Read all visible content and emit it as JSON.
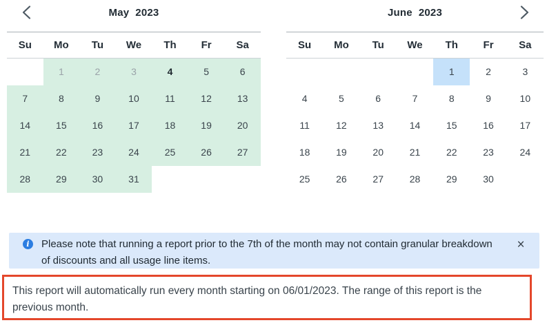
{
  "colors": {
    "selected_range_green": "#d7efe2",
    "selected_day_blue": "#c5e1fa",
    "banner_background": "#dbe9fb",
    "info_icon_blue": "#2b7de1",
    "alert_border_red": "#e4472b"
  },
  "calendars": [
    {
      "month": "May",
      "year": "2023",
      "day_names": [
        "Su",
        "Mo",
        "Tu",
        "We",
        "Th",
        "Fr",
        "Sa"
      ],
      "weeks": [
        [
          {
            "d": ""
          },
          {
            "d": "1",
            "hl": "green",
            "muted": true
          },
          {
            "d": "2",
            "hl": "green",
            "muted": true
          },
          {
            "d": "3",
            "hl": "green",
            "muted": true
          },
          {
            "d": "4",
            "hl": "green",
            "bold": true
          },
          {
            "d": "5",
            "hl": "green"
          },
          {
            "d": "6",
            "hl": "green"
          }
        ],
        [
          {
            "d": "7",
            "hl": "green"
          },
          {
            "d": "8",
            "hl": "green"
          },
          {
            "d": "9",
            "hl": "green"
          },
          {
            "d": "10",
            "hl": "green"
          },
          {
            "d": "11",
            "hl": "green"
          },
          {
            "d": "12",
            "hl": "green"
          },
          {
            "d": "13",
            "hl": "green"
          }
        ],
        [
          {
            "d": "14",
            "hl": "green"
          },
          {
            "d": "15",
            "hl": "green"
          },
          {
            "d": "16",
            "hl": "green"
          },
          {
            "d": "17",
            "hl": "green"
          },
          {
            "d": "18",
            "hl": "green"
          },
          {
            "d": "19",
            "hl": "green"
          },
          {
            "d": "20",
            "hl": "green"
          }
        ],
        [
          {
            "d": "21",
            "hl": "green"
          },
          {
            "d": "22",
            "hl": "green"
          },
          {
            "d": "23",
            "hl": "green"
          },
          {
            "d": "24",
            "hl": "green"
          },
          {
            "d": "25",
            "hl": "green"
          },
          {
            "d": "26",
            "hl": "green"
          },
          {
            "d": "27",
            "hl": "green"
          }
        ],
        [
          {
            "d": "28",
            "hl": "green"
          },
          {
            "d": "29",
            "hl": "green"
          },
          {
            "d": "30",
            "hl": "green"
          },
          {
            "d": "31",
            "hl": "green"
          },
          {
            "d": ""
          },
          {
            "d": ""
          },
          {
            "d": ""
          }
        ]
      ]
    },
    {
      "month": "June",
      "year": "2023",
      "day_names": [
        "Su",
        "Mo",
        "Tu",
        "We",
        "Th",
        "Fr",
        "Sa"
      ],
      "weeks": [
        [
          {
            "d": ""
          },
          {
            "d": ""
          },
          {
            "d": ""
          },
          {
            "d": ""
          },
          {
            "d": "1",
            "hl": "blue"
          },
          {
            "d": "2"
          },
          {
            "d": "3"
          }
        ],
        [
          {
            "d": "4"
          },
          {
            "d": "5"
          },
          {
            "d": "6"
          },
          {
            "d": "7"
          },
          {
            "d": "8"
          },
          {
            "d": "9"
          },
          {
            "d": "10"
          }
        ],
        [
          {
            "d": "11"
          },
          {
            "d": "12"
          },
          {
            "d": "13"
          },
          {
            "d": "14"
          },
          {
            "d": "15"
          },
          {
            "d": "16"
          },
          {
            "d": "17"
          }
        ],
        [
          {
            "d": "18"
          },
          {
            "d": "19"
          },
          {
            "d": "20"
          },
          {
            "d": "21"
          },
          {
            "d": "22"
          },
          {
            "d": "23"
          },
          {
            "d": "24"
          }
        ],
        [
          {
            "d": "25"
          },
          {
            "d": "26"
          },
          {
            "d": "27"
          },
          {
            "d": "28"
          },
          {
            "d": "29"
          },
          {
            "d": "30"
          },
          {
            "d": ""
          }
        ]
      ]
    }
  ],
  "banner": {
    "text": "Please note that running a report prior to the 7th of the month may not contain granular breakdown of discounts and all usage line items.",
    "close_label": "×"
  },
  "info_icon_glyph": "i",
  "schedule_note": {
    "text": "This report will automatically run every month starting on 06/01/2023. The range of this report is the previous month."
  }
}
